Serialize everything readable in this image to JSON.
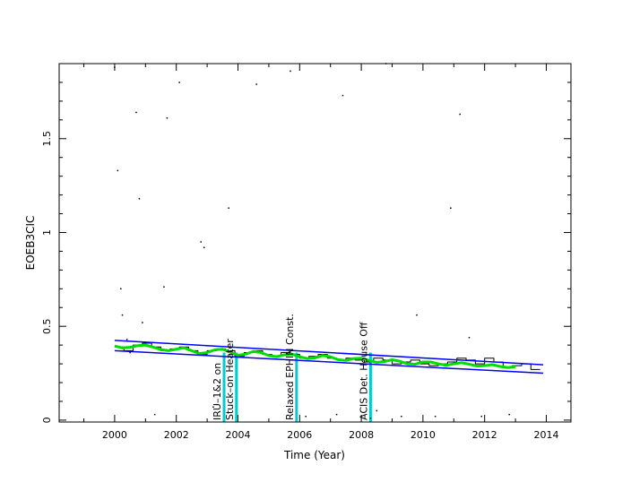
{
  "chart_data": {
    "type": "line",
    "title": "",
    "xlabel": "Time (Year)",
    "ylabel": "EOEB3CIC",
    "xlim": [
      1998.2,
      2014.8
    ],
    "ylim": [
      -0.01,
      1.9
    ],
    "x_ticks": [
      2000,
      2002,
      2004,
      2006,
      2008,
      2010,
      2012,
      2014
    ],
    "x_tick_labels": [
      "2000",
      "2002",
      "2004",
      "2006",
      "2008",
      "2010",
      "2012",
      "2014"
    ],
    "y_ticks": [
      0,
      0.5,
      1,
      1.5
    ],
    "y_tick_labels": [
      "0",
      "0.5",
      "1",
      "1.5"
    ],
    "grid": false,
    "series": [
      {
        "color": "#000000",
        "style": "stepped",
        "x": [
          2000.0,
          2000.3,
          2000.6,
          2000.9,
          2001.2,
          2001.5,
          2001.8,
          2002.1,
          2002.4,
          2002.7,
          2003.0,
          2003.3,
          2003.6,
          2003.9,
          2004.2,
          2004.5,
          2004.8,
          2005.1,
          2005.4,
          2005.7,
          2006.0,
          2006.3,
          2006.6,
          2006.9,
          2007.2,
          2007.5,
          2007.8,
          2008.1,
          2008.4,
          2008.7,
          2009.0,
          2009.3,
          2009.6,
          2009.9,
          2010.2,
          2010.5,
          2010.8,
          2011.1,
          2011.4,
          2011.7,
          2012.0,
          2012.3,
          2012.6,
          2012.9,
          2013.2,
          2013.5
        ],
        "values": [
          0.39,
          0.37,
          0.4,
          0.41,
          0.39,
          0.37,
          0.38,
          0.39,
          0.37,
          0.35,
          0.37,
          0.38,
          0.37,
          0.34,
          0.36,
          0.37,
          0.35,
          0.34,
          0.36,
          0.35,
          0.33,
          0.34,
          0.35,
          0.33,
          0.32,
          0.33,
          0.32,
          0.31,
          0.33,
          0.32,
          0.3,
          0.31,
          0.32,
          0.3,
          0.29,
          0.3,
          0.31,
          0.33,
          0.32,
          0.3,
          0.33,
          0.31,
          0.28,
          0.29,
          0.3,
          0.27
        ]
      },
      {
        "color": "#00dd00",
        "style": "smooth",
        "x": [
          2000.0,
          2000.25,
          2000.5,
          2000.75,
          2001.0,
          2001.25,
          2001.5,
          2001.75,
          2002.0,
          2002.25,
          2002.5,
          2002.75,
          2003.0,
          2003.25,
          2003.5,
          2003.75,
          2004.0,
          2004.25,
          2004.5,
          2004.75,
          2005.0,
          2005.25,
          2005.5,
          2005.75,
          2006.0,
          2006.25,
          2006.5,
          2006.75,
          2007.0,
          2007.25,
          2007.5,
          2007.75,
          2008.0,
          2008.25,
          2008.5,
          2008.75,
          2009.0,
          2009.25,
          2009.5,
          2009.75,
          2010.0,
          2010.25,
          2010.5,
          2010.75,
          2011.0,
          2011.25,
          2011.5,
          2011.75,
          2012.0,
          2012.25,
          2012.5,
          2012.75,
          2013.0
        ],
        "values": [
          0.395,
          0.385,
          0.388,
          0.397,
          0.4,
          0.389,
          0.376,
          0.37,
          0.378,
          0.386,
          0.37,
          0.355,
          0.36,
          0.375,
          0.378,
          0.362,
          0.346,
          0.352,
          0.366,
          0.36,
          0.344,
          0.338,
          0.348,
          0.352,
          0.338,
          0.328,
          0.332,
          0.344,
          0.338,
          0.322,
          0.318,
          0.328,
          0.33,
          0.318,
          0.308,
          0.312,
          0.322,
          0.314,
          0.3,
          0.298,
          0.31,
          0.31,
          0.3,
          0.292,
          0.3,
          0.306,
          0.298,
          0.288,
          0.29,
          0.296,
          0.286,
          0.28,
          0.285
        ]
      },
      {
        "color": "#0000ff",
        "style": "straight",
        "x": [
          2000.0,
          2013.9
        ],
        "values": [
          0.425,
          0.295
        ]
      },
      {
        "color": "#0000ff",
        "style": "straight",
        "x": [
          2000.0,
          2013.9
        ],
        "values": [
          0.37,
          0.25
        ]
      }
    ],
    "scatter_points": {
      "color": "#000000",
      "points": [
        [
          2000.0,
          1.88
        ],
        [
          2000.1,
          1.33
        ],
        [
          2000.2,
          0.7
        ],
        [
          2000.25,
          0.56
        ],
        [
          2000.4,
          0.43
        ],
        [
          2000.5,
          0.36
        ],
        [
          2000.7,
          1.64
        ],
        [
          2000.8,
          1.18
        ],
        [
          2000.9,
          0.52
        ],
        [
          2001.3,
          0.03
        ],
        [
          2001.6,
          0.71
        ],
        [
          2001.7,
          1.61
        ],
        [
          2002.1,
          1.8
        ],
        [
          2002.8,
          0.95
        ],
        [
          2002.9,
          0.92
        ],
        [
          2003.2,
          0.07
        ],
        [
          2003.7,
          1.13
        ],
        [
          2004.6,
          1.79
        ],
        [
          2005.7,
          1.86
        ],
        [
          2006.2,
          0.02
        ],
        [
          2007.2,
          0.03
        ],
        [
          2007.4,
          1.73
        ],
        [
          2008.3,
          0.01
        ],
        [
          2008.5,
          0.05
        ],
        [
          2008.8,
          1.9
        ],
        [
          2009.3,
          0.02
        ],
        [
          2009.8,
          0.56
        ],
        [
          2010.4,
          0.02
        ],
        [
          2010.9,
          1.13
        ],
        [
          2011.2,
          1.63
        ],
        [
          2011.5,
          0.44
        ],
        [
          2011.9,
          0.02
        ],
        [
          2012.8,
          0.03
        ]
      ]
    },
    "markers": [
      {
        "x": 2003.55,
        "label": "IRU–1&2 on",
        "color": "#00cccc"
      },
      {
        "x": 2003.95,
        "label": "Stuck–on Heater",
        "color": "#00cccc"
      },
      {
        "x": 2005.9,
        "label": "Relaxed EPHIN Const.",
        "color": "#00cccc"
      },
      {
        "x": 2008.3,
        "label": "ACIS Det. House Off",
        "color": "#00cccc"
      }
    ]
  }
}
